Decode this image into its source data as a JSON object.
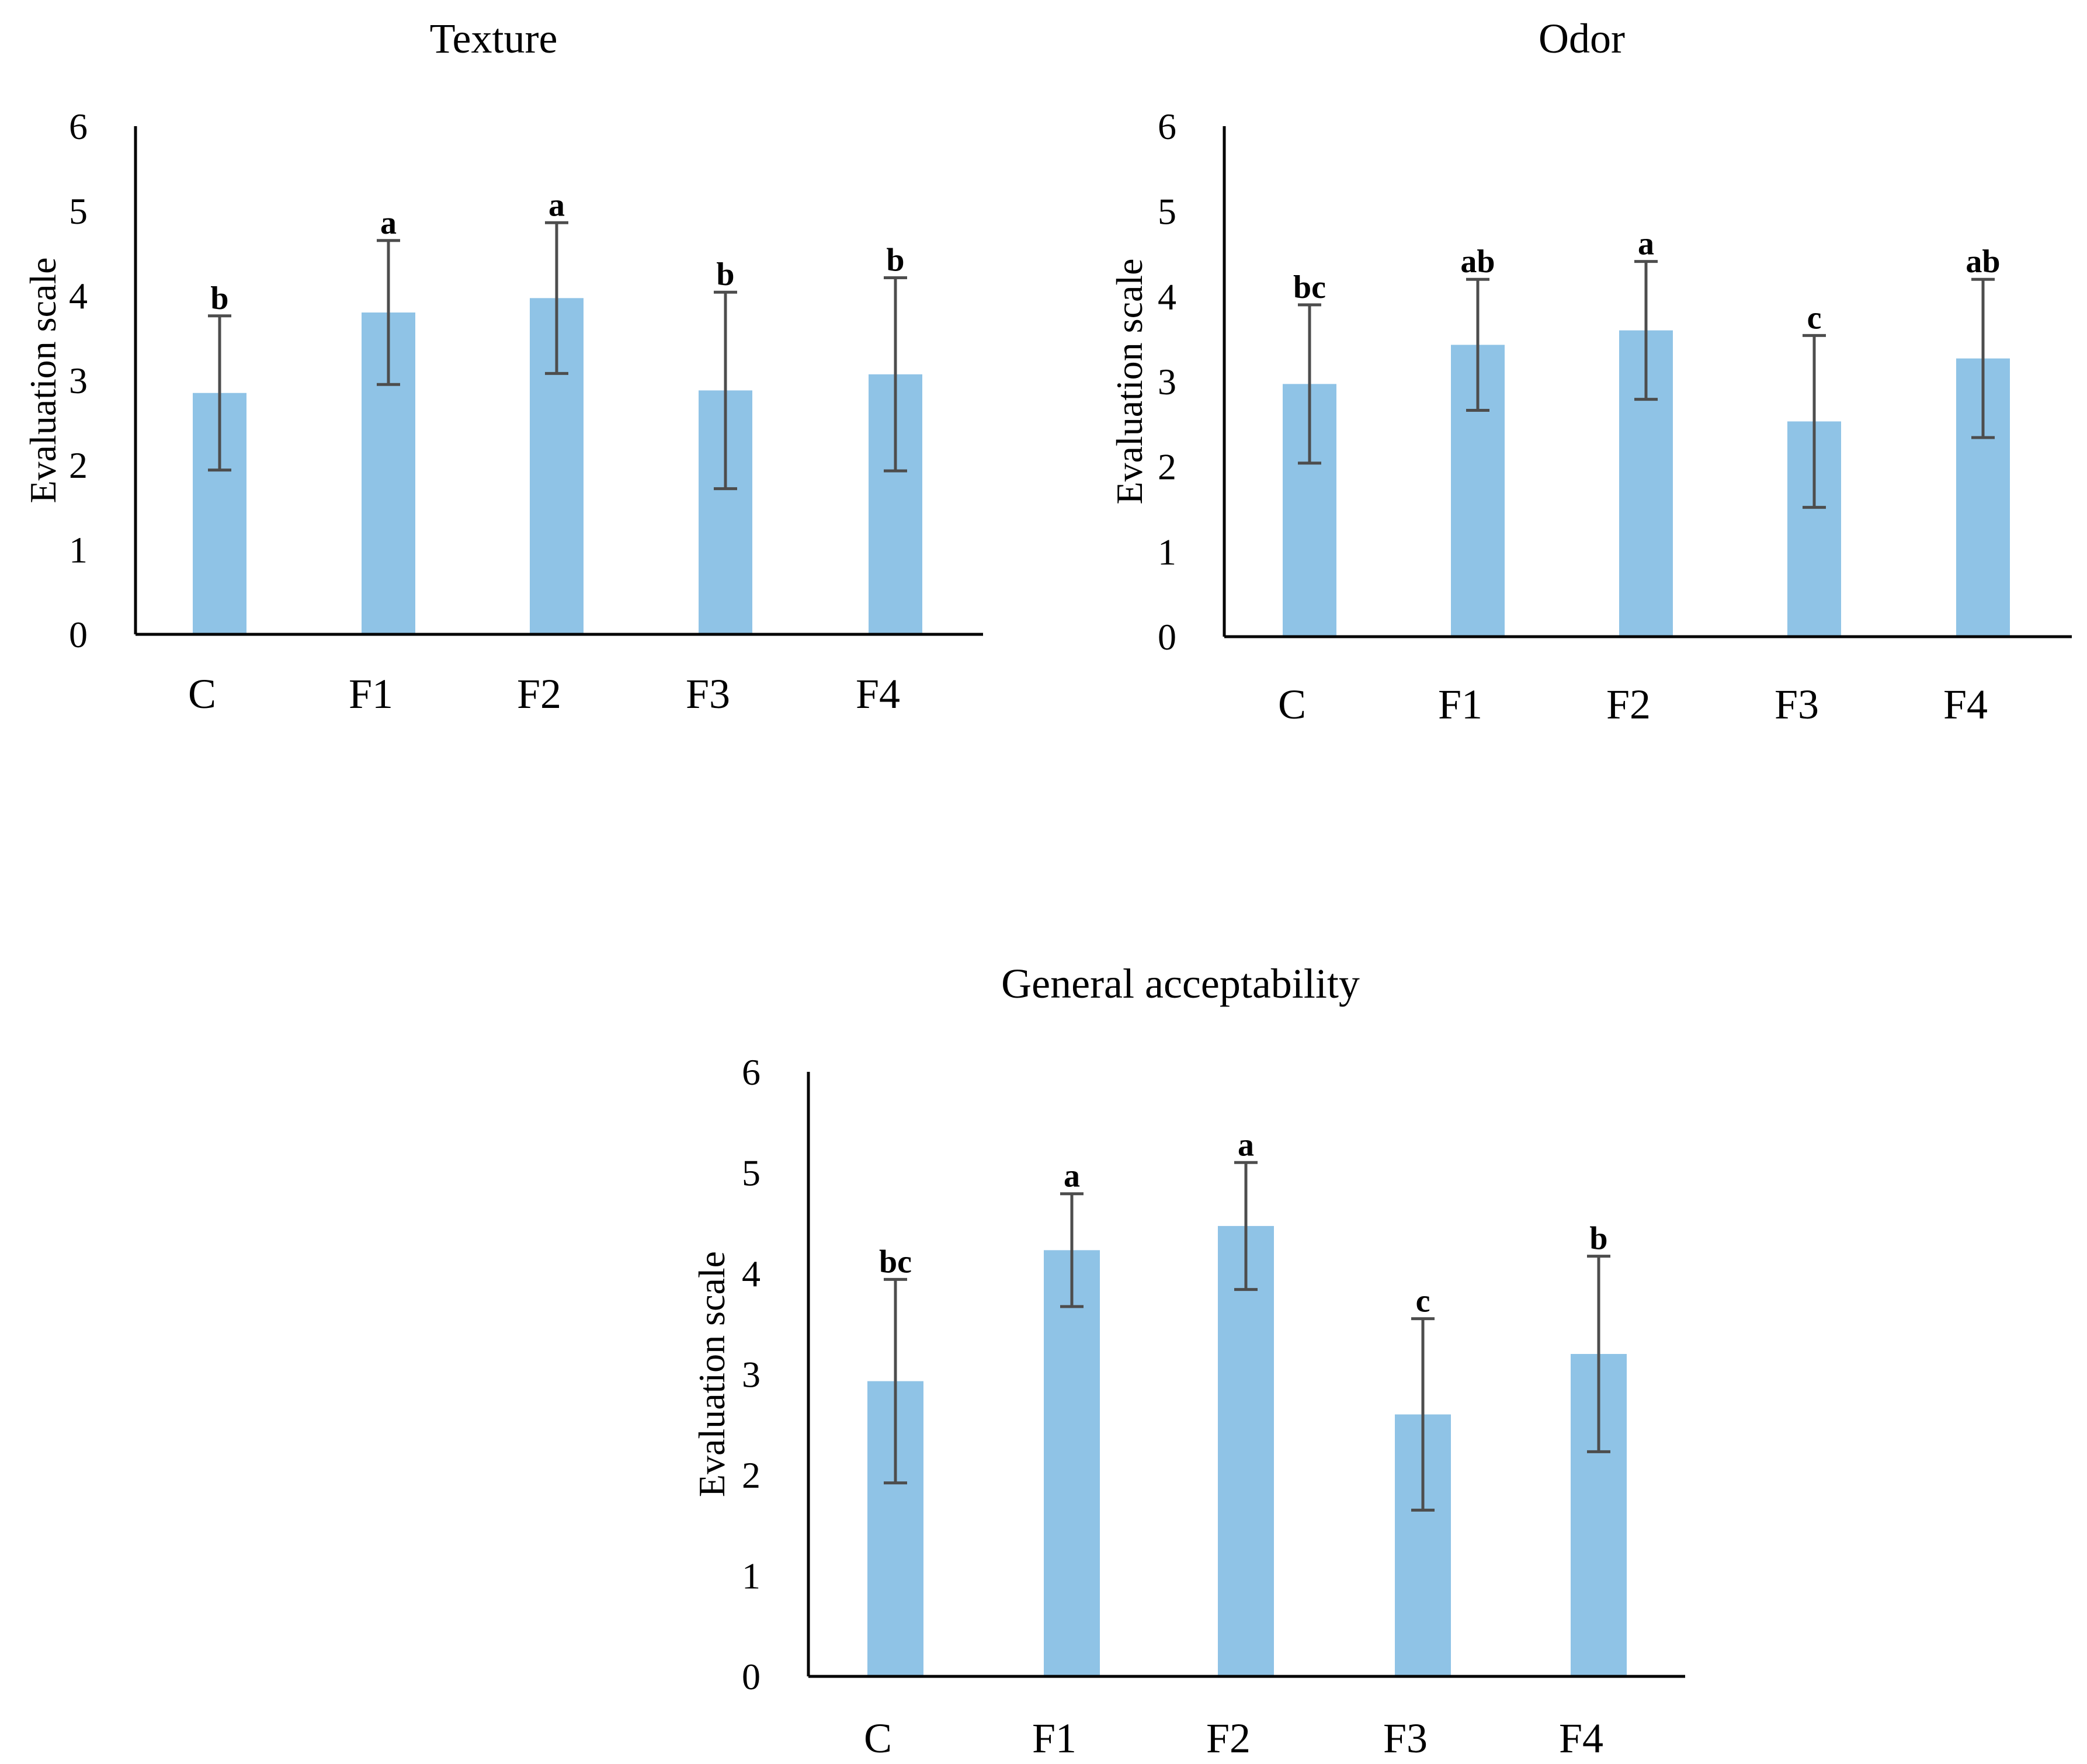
{
  "colors": {
    "bar": "#8fc3e6",
    "error_bar": "#4d4d4d",
    "axis": "#000000",
    "text": "#000000"
  },
  "chart_data": [
    {
      "type": "bar",
      "title": "Texture",
      "xlabel": "",
      "ylabel": "Evaluation scale",
      "ylim": [
        0,
        6
      ],
      "yticks": [
        0,
        1,
        2,
        3,
        4,
        5,
        6
      ],
      "categories": [
        "C",
        "F1",
        "F2",
        "F3",
        "F4"
      ],
      "values": [
        2.85,
        3.8,
        3.97,
        2.88,
        3.07
      ],
      "errors": [
        0.91,
        0.85,
        0.89,
        1.16,
        1.14
      ],
      "letters": [
        "b",
        "a",
        "a",
        "b",
        "b"
      ],
      "grid": false
    },
    {
      "type": "bar",
      "title": "Odor",
      "xlabel": "",
      "ylabel": "Evaluation scale",
      "ylim": [
        0,
        6
      ],
      "yticks": [
        0,
        1,
        2,
        3,
        4,
        5,
        6
      ],
      "categories": [
        "C",
        "F1",
        "F2",
        "F3",
        "F4"
      ],
      "values": [
        2.97,
        3.43,
        3.6,
        2.53,
        3.27
      ],
      "errors": [
        0.93,
        0.77,
        0.81,
        1.01,
        0.93
      ],
      "letters": [
        "bc",
        "ab",
        "a",
        "c",
        "ab"
      ],
      "grid": false
    },
    {
      "type": "bar",
      "title": "General acceptability",
      "xlabel": "",
      "ylabel": "Evaluation scale",
      "ylim": [
        0,
        6
      ],
      "yticks": [
        0,
        1,
        2,
        3,
        4,
        5,
        6
      ],
      "categories": [
        "C",
        "F1",
        "F2",
        "F3",
        "F4"
      ],
      "values": [
        2.93,
        4.23,
        4.47,
        2.6,
        3.2
      ],
      "errors": [
        1.01,
        0.56,
        0.63,
        0.95,
        0.97
      ],
      "letters": [
        "bc",
        "a",
        "a",
        "c",
        "b"
      ],
      "grid": false
    }
  ]
}
